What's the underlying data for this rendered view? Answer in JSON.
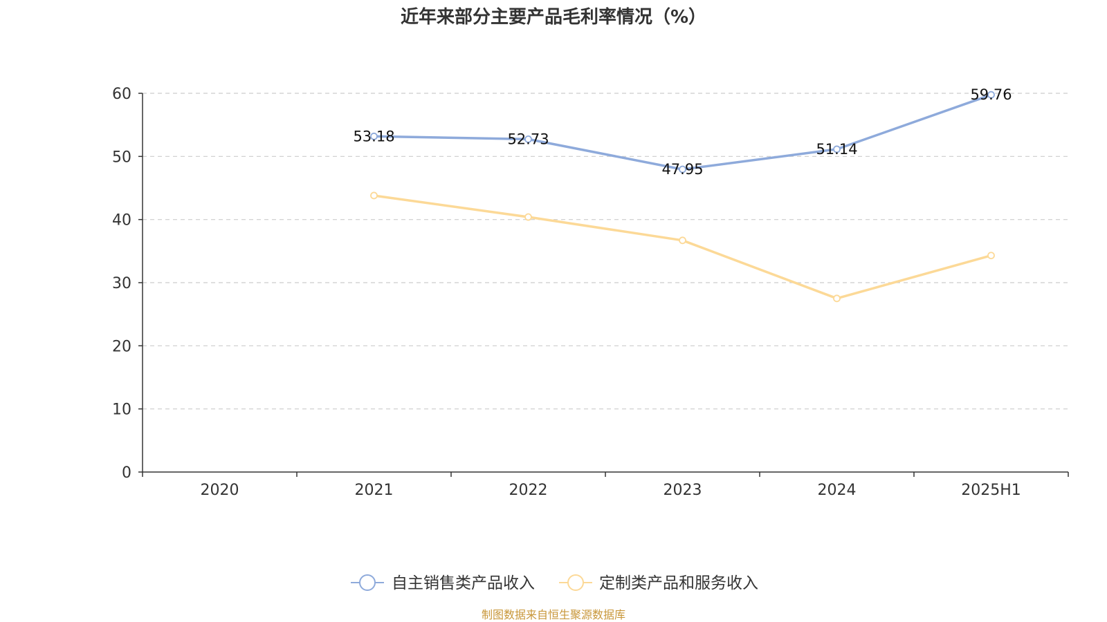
{
  "chart_data": {
    "type": "line",
    "title": "近年来部分主要产品毛利率情况（%）",
    "categories": [
      "2020",
      "2021",
      "2022",
      "2023",
      "2024",
      "2025H1"
    ],
    "ylim": [
      0,
      60
    ],
    "yticks": [
      "0",
      "10",
      "20",
      "30",
      "40",
      "50",
      "60"
    ],
    "grid": true,
    "legend_position": "bottom",
    "series": [
      {
        "name": "自主销售类产品收入",
        "color": "#8eaadb",
        "values": [
          null,
          53.18,
          52.73,
          47.95,
          51.14,
          59.76
        ],
        "labels": [
          null,
          "53.18",
          "52.73",
          "47.95",
          "51.14",
          "59.76"
        ]
      },
      {
        "name": "定制类产品和服务收入",
        "color": "#fcd997",
        "values": [
          null,
          43.8,
          40.4,
          36.7,
          27.5,
          34.3
        ],
        "labels": [
          null,
          null,
          null,
          null,
          null,
          null
        ]
      }
    ],
    "source_note": "制图数据来自恒生聚源数据库"
  }
}
